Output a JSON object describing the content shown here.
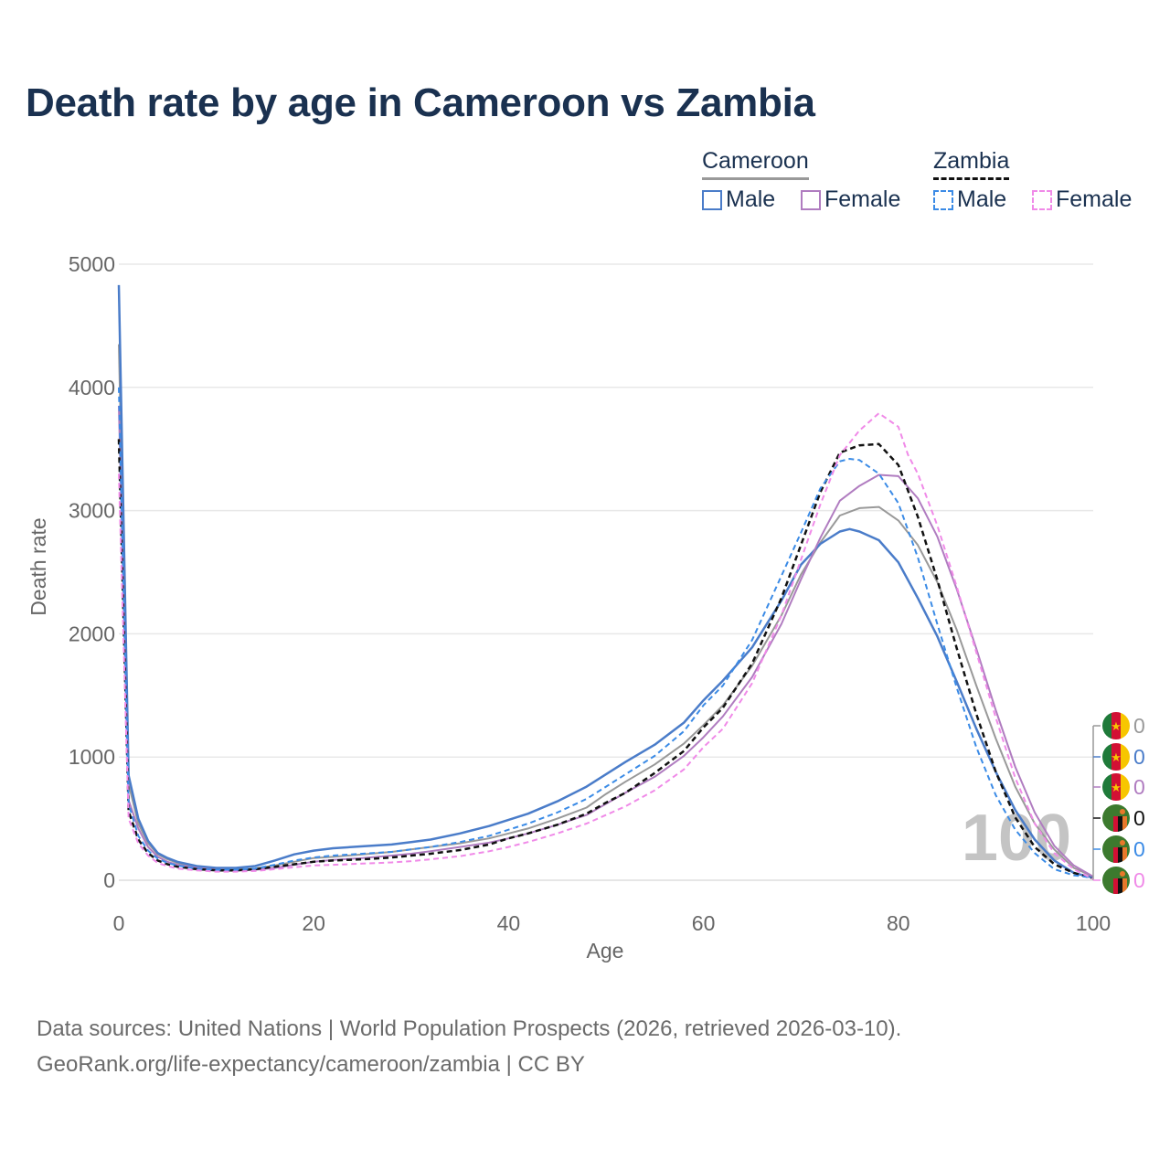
{
  "title": "Death rate by age in Cameroon vs Zambia",
  "legend": {
    "groups": [
      {
        "name": "Cameroon",
        "line_color": "#999999",
        "line_style": "solid",
        "items": [
          {
            "label": "Male",
            "color": "#4a7cc9"
          },
          {
            "label": "Female",
            "color": "#b07cc0"
          }
        ]
      },
      {
        "name": "Zambia",
        "line_color": "#111111",
        "line_style": "dashed",
        "items": [
          {
            "label": "Male",
            "color": "#3b8be6"
          },
          {
            "label": "Female",
            "color": "#f08ae8"
          }
        ]
      }
    ]
  },
  "sources": {
    "line1": "Data sources: United Nations | World Population Prospects (2026, retrieved 2026-03-10).",
    "line2": "GeoRank.org/life-expectancy/cameroon/zambia | CC BY"
  },
  "chart_data": {
    "type": "line",
    "title": "Death rate by age in Cameroon vs Zambia",
    "xlabel": "Age",
    "ylabel": "Death rate",
    "xlim": [
      0,
      100
    ],
    "ylim": [
      0,
      5000
    ],
    "xticks": [
      0,
      20,
      40,
      60,
      80,
      100
    ],
    "yticks": [
      0,
      1000,
      2000,
      3000,
      4000,
      5000
    ],
    "grid": true,
    "legend_position": "top-right",
    "annotation": "100",
    "end_labels": [
      {
        "country": "Cameroon",
        "flag": "cameroon",
        "value": "0",
        "color": "#999999"
      },
      {
        "country": "Cameroon",
        "flag": "cameroon",
        "value": "0",
        "color": "#4a7cc9"
      },
      {
        "country": "Cameroon",
        "flag": "cameroon",
        "value": "0",
        "color": "#b07cc0"
      },
      {
        "country": "Zambia",
        "flag": "zambia",
        "value": "0",
        "color": "#111111"
      },
      {
        "country": "Zambia",
        "flag": "zambia",
        "value": "0",
        "color": "#3b8be6"
      },
      {
        "country": "Zambia",
        "flag": "zambia",
        "value": "0",
        "color": "#f08ae8"
      }
    ],
    "series": [
      {
        "name": "Cameroon Total",
        "color": "#999999",
        "dashed": false,
        "width": 2,
        "x": [
          0,
          1,
          2,
          3,
          4,
          5,
          6,
          8,
          10,
          12,
          14,
          16,
          18,
          20,
          22,
          25,
          28,
          30,
          32,
          35,
          38,
          40,
          42,
          45,
          48,
          50,
          52,
          55,
          58,
          60,
          62,
          65,
          68,
          70,
          72,
          74,
          76,
          78,
          80,
          82,
          84,
          86,
          88,
          90,
          92,
          94,
          96,
          98,
          100
        ],
        "y": [
          4350,
          780,
          460,
          300,
          210,
          170,
          140,
          110,
          90,
          85,
          95,
          120,
          150,
          180,
          190,
          210,
          230,
          250,
          270,
          300,
          340,
          380,
          420,
          500,
          590,
          700,
          800,
          940,
          1110,
          1260,
          1420,
          1740,
          2150,
          2480,
          2740,
          2960,
          3020,
          3030,
          2920,
          2720,
          2420,
          2030,
          1580,
          1150,
          760,
          460,
          250,
          100,
          30
        ]
      },
      {
        "name": "Cameroon Male",
        "color": "#4a7cc9",
        "dashed": false,
        "width": 2.5,
        "x": [
          0,
          1,
          2,
          3,
          4,
          5,
          6,
          8,
          10,
          12,
          14,
          16,
          18,
          20,
          22,
          25,
          28,
          30,
          32,
          35,
          38,
          40,
          42,
          45,
          48,
          50,
          52,
          55,
          58,
          60,
          62,
          65,
          68,
          70,
          72,
          74,
          75,
          76,
          78,
          80,
          82,
          84,
          86,
          88,
          90,
          92,
          94,
          96,
          98,
          100
        ],
        "y": [
          4830,
          850,
          500,
          320,
          220,
          180,
          150,
          115,
          100,
          100,
          115,
          160,
          210,
          240,
          260,
          275,
          290,
          310,
          330,
          380,
          440,
          490,
          540,
          640,
          760,
          860,
          960,
          1100,
          1280,
          1460,
          1620,
          1890,
          2270,
          2560,
          2730,
          2830,
          2850,
          2830,
          2760,
          2580,
          2290,
          1980,
          1610,
          1230,
          880,
          570,
          330,
          160,
          60,
          20
        ]
      },
      {
        "name": "Cameroon Female",
        "color": "#b07cc0",
        "dashed": false,
        "width": 2,
        "x": [
          0,
          1,
          2,
          3,
          4,
          5,
          6,
          8,
          10,
          12,
          14,
          16,
          18,
          20,
          22,
          25,
          28,
          30,
          32,
          35,
          38,
          40,
          42,
          45,
          48,
          50,
          52,
          55,
          58,
          60,
          62,
          65,
          68,
          70,
          72,
          74,
          76,
          78,
          80,
          82,
          84,
          86,
          88,
          90,
          92,
          94,
          96,
          98,
          100
        ],
        "y": [
          3850,
          650,
          420,
          270,
          190,
          150,
          125,
          100,
          85,
          80,
          85,
          100,
          125,
          150,
          165,
          180,
          200,
          215,
          235,
          270,
          305,
          340,
          380,
          450,
          530,
          620,
          710,
          840,
          1010,
          1160,
          1330,
          1650,
          2080,
          2440,
          2780,
          3080,
          3200,
          3290,
          3280,
          3100,
          2790,
          2360,
          1880,
          1380,
          920,
          550,
          280,
          120,
          30
        ]
      },
      {
        "name": "Zambia Total",
        "color": "#111111",
        "dashed": true,
        "width": 2.5,
        "x": [
          0,
          1,
          2,
          3,
          4,
          5,
          6,
          8,
          10,
          12,
          14,
          16,
          18,
          20,
          22,
          25,
          28,
          30,
          32,
          35,
          38,
          40,
          42,
          45,
          48,
          50,
          52,
          55,
          58,
          60,
          62,
          65,
          68,
          70,
          72,
          74,
          76,
          78,
          80,
          82,
          84,
          86,
          88,
          90,
          92,
          94,
          96,
          98,
          100
        ],
        "y": [
          3580,
          560,
          330,
          220,
          160,
          130,
          110,
          90,
          80,
          80,
          90,
          110,
          130,
          150,
          160,
          170,
          185,
          200,
          215,
          245,
          290,
          340,
          380,
          450,
          540,
          630,
          710,
          870,
          1050,
          1240,
          1400,
          1760,
          2290,
          2720,
          3150,
          3470,
          3530,
          3540,
          3370,
          2950,
          2440,
          1880,
          1350,
          880,
          510,
          270,
          130,
          60,
          15
        ]
      },
      {
        "name": "Zambia Male",
        "color": "#3b8be6",
        "dashed": true,
        "width": 2,
        "x": [
          0,
          1,
          2,
          3,
          4,
          5,
          6,
          8,
          10,
          12,
          14,
          16,
          18,
          20,
          22,
          25,
          28,
          30,
          32,
          35,
          38,
          40,
          42,
          45,
          48,
          50,
          52,
          55,
          58,
          60,
          62,
          65,
          68,
          70,
          72,
          74,
          75,
          76,
          78,
          80,
          82,
          84,
          86,
          88,
          90,
          92,
          94,
          96,
          98,
          100
        ],
        "y": [
          4000,
          620,
          360,
          240,
          175,
          140,
          120,
          95,
          85,
          85,
          95,
          125,
          160,
          185,
          200,
          215,
          230,
          250,
          270,
          310,
          360,
          410,
          460,
          550,
          660,
          760,
          860,
          1010,
          1210,
          1420,
          1580,
          1950,
          2470,
          2820,
          3180,
          3400,
          3420,
          3410,
          3300,
          3060,
          2620,
          2080,
          1560,
          1080,
          690,
          410,
          220,
          90,
          40,
          20
        ]
      },
      {
        "name": "Zambia Female",
        "color": "#f08ae8",
        "dashed": true,
        "width": 2,
        "x": [
          0,
          1,
          2,
          3,
          4,
          5,
          6,
          8,
          10,
          12,
          14,
          16,
          18,
          20,
          22,
          25,
          28,
          30,
          32,
          35,
          38,
          40,
          42,
          45,
          48,
          50,
          52,
          55,
          58,
          60,
          62,
          65,
          68,
          70,
          72,
          74,
          76,
          78,
          80,
          81,
          82,
          84,
          86,
          88,
          90,
          92,
          94,
          96,
          98,
          100
        ],
        "y": [
          3300,
          500,
          300,
          200,
          140,
          115,
          95,
          80,
          70,
          70,
          75,
          90,
          105,
          120,
          125,
          135,
          145,
          155,
          170,
          195,
          235,
          270,
          310,
          380,
          460,
          530,
          600,
          730,
          900,
          1080,
          1230,
          1600,
          2150,
          2600,
          3050,
          3450,
          3650,
          3790,
          3680,
          3450,
          3300,
          2880,
          2380,
          1850,
          1320,
          830,
          460,
          220,
          90,
          10
        ]
      }
    ]
  }
}
